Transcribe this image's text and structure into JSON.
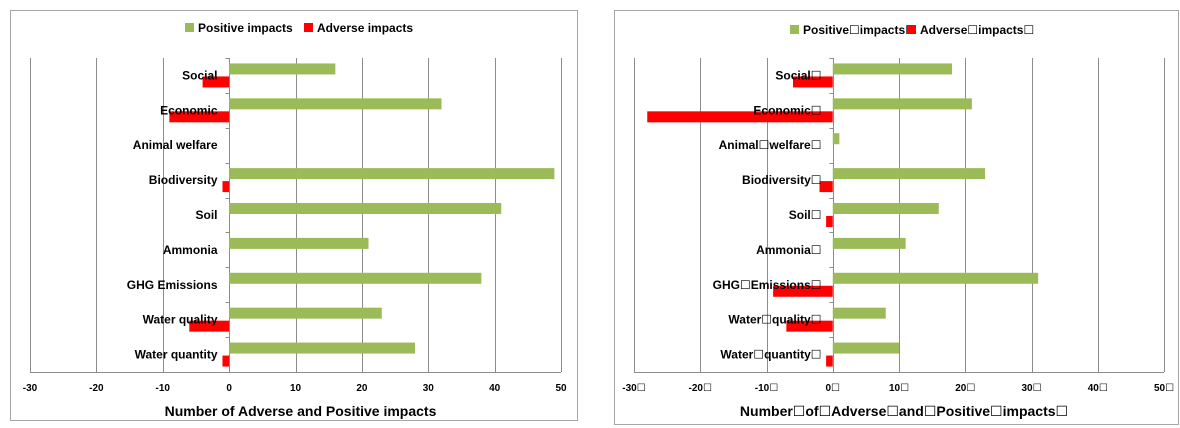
{
  "chart_data": [
    {
      "type": "bar",
      "orientation": "horizontal",
      "categories": [
        "Social",
        "Economic",
        "Animal welfare",
        "Biodiversity",
        "Soil",
        "Ammonia",
        "GHG Emissions",
        "Water quality",
        "Water quantity"
      ],
      "series": [
        {
          "name": "Positive impacts",
          "color": "#9bbb59",
          "values": [
            16,
            32,
            0,
            49,
            41,
            21,
            38,
            23,
            28
          ]
        },
        {
          "name": "Adverse impacts",
          "color": "#ff0000",
          "values": [
            -4,
            -9,
            0,
            -1,
            0,
            0,
            0,
            -6,
            -1
          ]
        }
      ],
      "xticks": [
        "-30",
        "-20",
        "-10",
        "0",
        "10",
        "20",
        "30",
        "40",
        "50"
      ],
      "xlim": [
        -30,
        50
      ],
      "xlabel": "Number of Adverse and Positive impacts",
      "ylabel": "",
      "title": "",
      "legend": "top",
      "grid": true
    },
    {
      "type": "bar",
      "orientation": "horizontal",
      "categories": [
        "Social☐",
        "Economic☐",
        "Animal☐welfare☐",
        "Biodiversity☐",
        "Soil☐",
        "Ammonia☐",
        "GHG☐Emissions☐",
        "Water☐quality☐",
        "Water☐quantity☐"
      ],
      "series": [
        {
          "name": "Positive☐impacts☐",
          "color": "#9bbb59",
          "values": [
            18,
            21,
            1,
            23,
            16,
            11,
            31,
            8,
            10
          ]
        },
        {
          "name": "Adverse☐impacts☐",
          "color": "#ff0000",
          "values": [
            -6,
            0,
            0,
            -2,
            -1,
            0,
            -9,
            -7,
            -1
          ]
        }
      ],
      "overflow_bars": [
        {
          "category_index": 1,
          "value": -28
        }
      ],
      "xticks": [
        "-30☐",
        "-20☐",
        "-10☐",
        "0☐",
        "10☐",
        "20☐",
        "30☐",
        "40☐",
        "50☐"
      ],
      "xlim": [
        -30,
        50
      ],
      "xlabel": "Number☐of☐Adverse☐and☐Positive☐impacts☐",
      "ylabel": "",
      "title": "",
      "legend": "top",
      "grid": true
    }
  ]
}
